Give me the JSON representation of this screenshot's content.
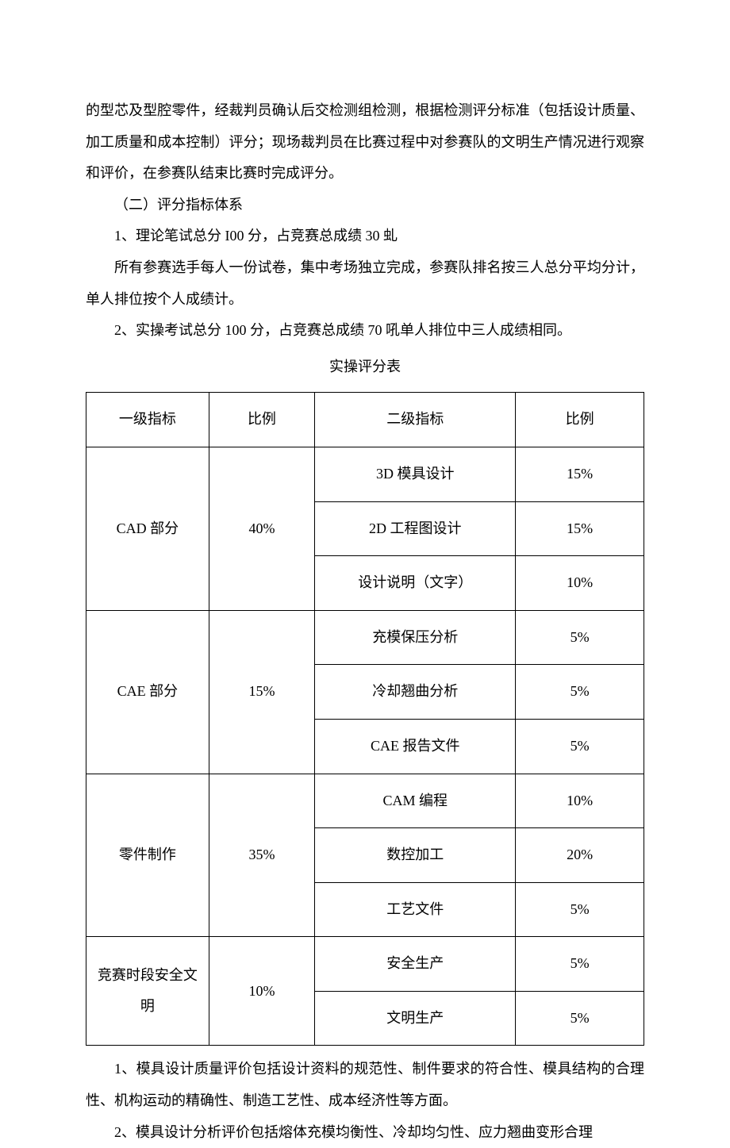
{
  "paragraphs": {
    "p1": "的型芯及型腔零件，经裁判员确认后交检测组检测，根据检测评分标准（包括设计质量、加工质量和成本控制）评分；现场裁判员在比赛过程中对参赛队的文明生产情况进行观察和评价，在参赛队结束比赛时完成评分。",
    "p2": "（二）评分指标体系",
    "p3": "1、理论笔试总分 I00 分，占竞赛总成绩 30 虬",
    "p4": "所有参赛选手每人一份试卷，集中考场独立完成，参赛队排名按三人总分平均分计，单人排位按个人成绩计。",
    "p5": "2、实操考试总分 100 分，占竞赛总成绩 70 吼单人排位中三人成绩相同。",
    "p6": "1、模具设计质量评价包括设计资料的规范性、制件要求的符合性、模具结构的合理性、机构运动的精确性、制造工艺性、成本经济性等方面。",
    "p7": "2、模具设计分析评价包括熔体充模均衡性、冷却均匀性、应力翘曲变形合理"
  },
  "table": {
    "title": "实操评分表",
    "headers": {
      "h1": "一级指标",
      "h2": "比例",
      "h3": "二级指标",
      "h4": "比例"
    },
    "rows": [
      {
        "cat": "CAD 部分",
        "catratio": "40%",
        "sub": "3D 模具设计",
        "subratio": "15%"
      },
      {
        "sub": "2D 工程图设计",
        "subratio": "15%"
      },
      {
        "sub": "设计说明（文字）",
        "subratio": "10%"
      },
      {
        "cat": "CAE 部分",
        "catratio": "15%",
        "sub": "充模保压分析",
        "subratio": "5%"
      },
      {
        "sub": "冷却翘曲分析",
        "subratio": "5%"
      },
      {
        "sub": "CAE 报告文件",
        "subratio": "5%"
      },
      {
        "cat": "零件制作",
        "catratio": "35%",
        "sub": "CAM 编程",
        "subratio": "10%"
      },
      {
        "sub": "数控加工",
        "subratio": "20%"
      },
      {
        "sub": "工艺文件",
        "subratio": "5%"
      },
      {
        "cat": "竞赛时段安全文明",
        "catratio": "10%",
        "sub": "安全生产",
        "subratio": "5%"
      },
      {
        "sub": "文明生产",
        "subratio": "5%"
      }
    ]
  }
}
